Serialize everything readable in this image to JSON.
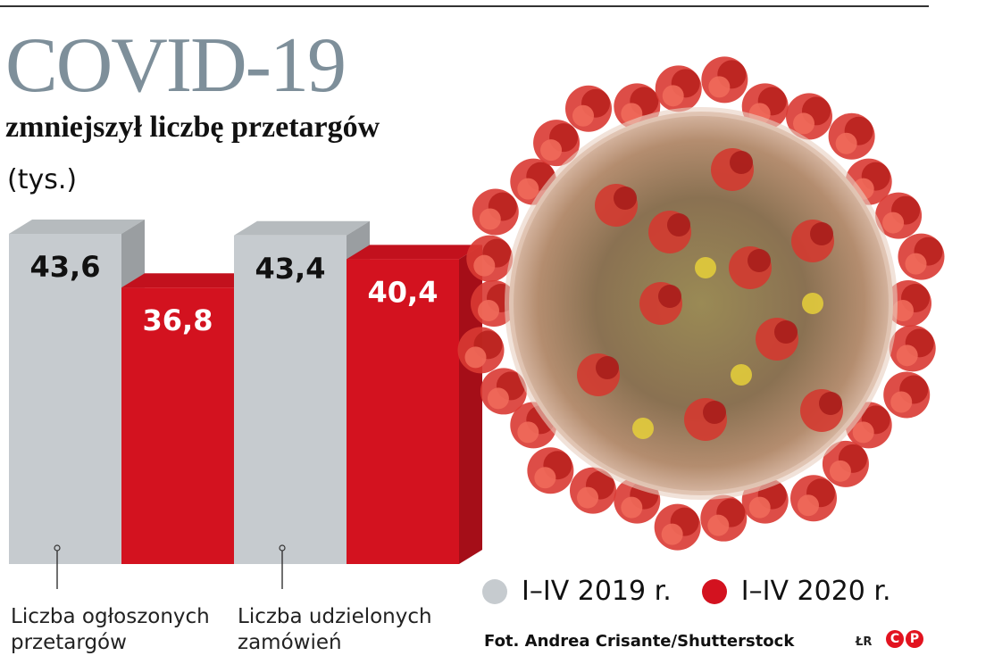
{
  "header": {
    "title": "COVID-19",
    "subtitle": "zmniejszył liczbę przetargów",
    "unit": "(tys.)"
  },
  "chart_data": {
    "type": "bar",
    "title": "COVID-19",
    "subtitle": "zmniejszył liczbę przetargów",
    "ylabel": "(tys.)",
    "categories": [
      "Liczba ogłoszonych przetargów",
      "Liczba udzielonych zamówień"
    ],
    "category_lines": [
      [
        "Liczba ogłoszonych",
        "przetargów"
      ],
      [
        "Liczba udzielonych",
        "zamówień"
      ]
    ],
    "series": [
      {
        "name": "I–IV 2019 r.",
        "values": [
          43.6,
          43.4
        ],
        "labels": [
          "43,6",
          "43,4"
        ],
        "color": "#c6cbcf"
      },
      {
        "name": "I–IV 2020 r.",
        "values": [
          36.8,
          40.4
        ],
        "labels": [
          "36,8",
          "40,4"
        ],
        "color": "#d3121f"
      }
    ],
    "ylim": [
      0,
      43.6
    ],
    "grid": false,
    "legend_position": "bottom-right"
  },
  "legend": [
    {
      "label": "I–IV 2019 r.",
      "color": "#c6cbcf"
    },
    {
      "label": "I–IV 2020 r.",
      "color": "#d3121f"
    }
  ],
  "footer": {
    "credit": "Fot. Andrea Crisante/Shutterstock",
    "initials": "ŁR",
    "logo": [
      "C",
      "P"
    ]
  },
  "colors": {
    "title_gray": "#7e8f9a",
    "bar_gray": "#c6cbcf",
    "bar_red": "#d3121f"
  }
}
